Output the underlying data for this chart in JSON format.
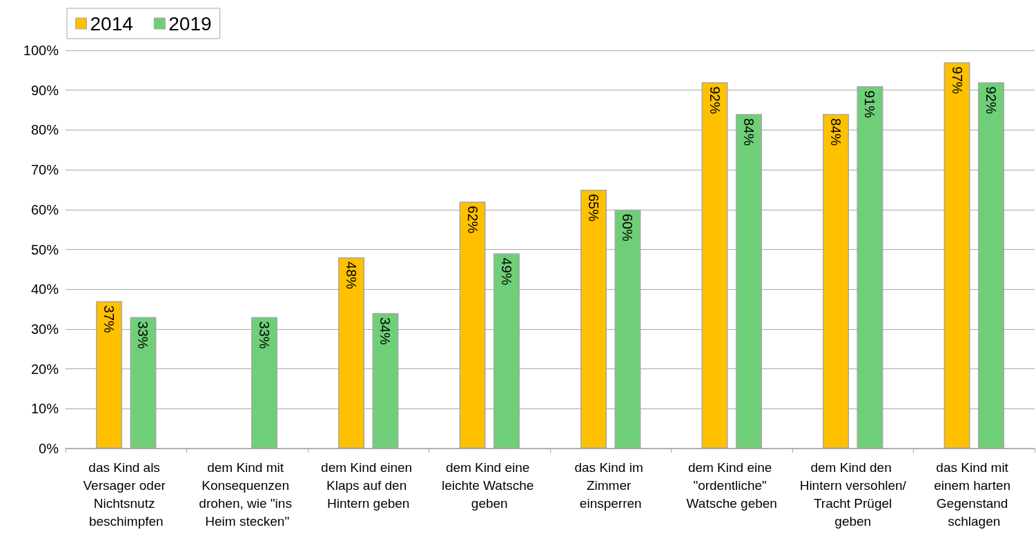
{
  "chart_data": {
    "type": "bar",
    "categories": [
      "das Kind als Versager oder Nichtsnutz beschimpfen",
      "dem Kind mit Konsequenzen drohen, wie \"ins Heim stecken\"",
      "dem Kind einen Klaps auf den Hintern geben",
      "dem Kind eine leichte Watsche geben",
      "das Kind im Zimmer einsperren",
      "dem Kind eine \"ordentliche\" Watsche geben",
      "dem Kind den Hintern versohlen/ Tracht Prügel geben",
      "das Kind mit einem harten Gegenstand schlagen"
    ],
    "series": [
      {
        "name": "2014",
        "color": "#ffc000",
        "values": [
          37,
          null,
          48,
          62,
          65,
          92,
          84,
          97
        ],
        "value_labels": [
          "37%",
          null,
          "48%",
          "62%",
          "65%",
          "92%",
          "84%",
          "97%"
        ]
      },
      {
        "name": "2019",
        "color": "#6fcf78",
        "values": [
          33,
          33,
          34,
          49,
          60,
          84,
          91,
          92
        ],
        "value_labels": [
          "33%",
          "33%",
          "34%",
          "49%",
          "60%",
          "84%",
          "91%",
          "92%"
        ]
      }
    ],
    "ylim": [
      0,
      100
    ],
    "yticks": [
      {
        "value": 0,
        "label": "0%"
      },
      {
        "value": 10,
        "label": "10%"
      },
      {
        "value": 20,
        "label": "20%"
      },
      {
        "value": 30,
        "label": "30%"
      },
      {
        "value": 40,
        "label": "40%"
      },
      {
        "value": 50,
        "label": "50%"
      },
      {
        "value": 60,
        "label": "60%"
      },
      {
        "value": 70,
        "label": "70%"
      },
      {
        "value": 80,
        "label": "80%"
      },
      {
        "value": 90,
        "label": "90%"
      },
      {
        "value": 100,
        "label": "100%"
      }
    ],
    "grid": "y",
    "legend": "top left"
  }
}
